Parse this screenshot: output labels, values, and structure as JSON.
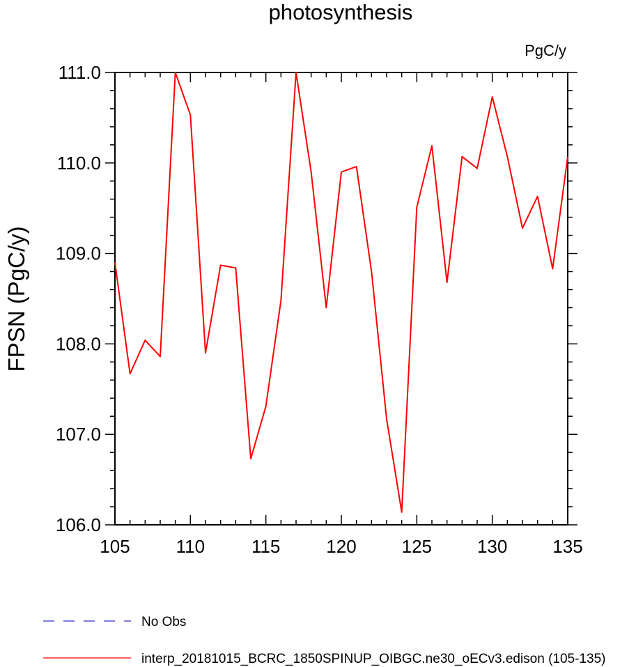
{
  "chart_data": {
    "type": "line",
    "title": "photosynthesis",
    "units_label": "PgC/y",
    "xlabel": "",
    "ylabel": "FPSN  (PgC/y)",
    "xlim": [
      105,
      135
    ],
    "ylim": [
      106.0,
      111.0
    ],
    "xticks": [
      105,
      110,
      115,
      120,
      125,
      130,
      135
    ],
    "yticks": [
      106.0,
      107.0,
      108.0,
      109.0,
      110.0,
      111.0
    ],
    "ytick_labels": [
      "106.0",
      "107.0",
      "108.0",
      "109.0",
      "110.0",
      "111.0"
    ],
    "grid": false,
    "legend_position": "bottom",
    "series": [
      {
        "name": "interp_20181015_BCRC_1850SPINUP_OIBGC.ne30_oECv3.edison (105-135)",
        "color": "#ff0000",
        "dash": "solid",
        "x": [
          105,
          106,
          107,
          108,
          109,
          110,
          111,
          112,
          113,
          114,
          115,
          116,
          117,
          118,
          119,
          120,
          121,
          122,
          123,
          124,
          125,
          126,
          127,
          128,
          129,
          130,
          131,
          132,
          133,
          134,
          135
        ],
        "y": [
          108.9,
          107.67,
          108.04,
          107.86,
          111.0,
          110.53,
          107.9,
          108.87,
          108.84,
          106.73,
          107.31,
          108.48,
          111.0,
          109.9,
          108.4,
          109.9,
          109.96,
          108.8,
          107.17,
          106.14,
          109.51,
          110.19,
          108.68,
          110.07,
          109.94,
          110.73,
          110.07,
          109.28,
          109.63,
          108.83,
          110.07
        ]
      }
    ],
    "legend": [
      {
        "label": "No Obs",
        "color": "#3333cc",
        "dash": "dashed"
      },
      {
        "label": "interp_20181015_BCRC_1850SPINUP_OIBGC.ne30_oECv3.edison (105-135)",
        "color": "#ff0000",
        "dash": "solid"
      }
    ]
  }
}
